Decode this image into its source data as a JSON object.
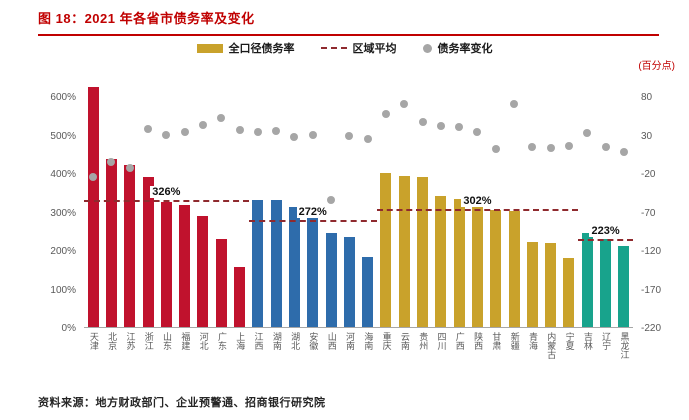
{
  "title": {
    "text": "图 18：2021 年各省市债务率及变化",
    "color": "#c00000"
  },
  "legend": [
    {
      "label": "全口径债务率",
      "swatch": "bar",
      "color": "#c9a22b"
    },
    {
      "label": "区域平均",
      "swatch": "dash",
      "color": "#8f2a2e"
    },
    {
      "label": "债务率变化",
      "swatch": "dot",
      "color": "#a6a6a6"
    }
  ],
  "right_axis_unit": "(百分点)",
  "chart_data": {
    "type": "bar",
    "title": "2021 年各省市债务率及变化",
    "categories": [
      "天津",
      "北京",
      "江苏",
      "浙江",
      "山东",
      "福建",
      "河北",
      "广东",
      "上海",
      "江西",
      "湖南",
      "湖北",
      "安徽",
      "山西",
      "河南",
      "海南",
      "重庆",
      "云南",
      "贵州",
      "四川",
      "广西",
      "陕西",
      "甘肃",
      "新疆",
      "青海",
      "内蒙古",
      "宁夏",
      "吉林",
      "辽宁",
      "黑龙江"
    ],
    "series": [
      {
        "name": "全口径债务率",
        "unit": "%",
        "axis": "left",
        "type": "bar",
        "values": [
          625,
          437,
          420,
          390,
          325,
          318,
          288,
          230,
          155,
          330,
          330,
          313,
          300,
          245,
          235,
          182,
          400,
          392,
          390,
          340,
          333,
          330,
          305,
          302,
          222,
          218,
          180,
          245,
          228,
          210
        ]
      },
      {
        "name": "债务率变化",
        "unit": "百分点",
        "axis": "right",
        "type": "scatter",
        "values": [
          -25,
          -5,
          -13,
          38,
          30,
          33,
          42,
          52,
          36,
          33,
          35,
          27,
          30,
          -55,
          28,
          24,
          57,
          70,
          46,
          41,
          40,
          33,
          12,
          70,
          14,
          13,
          15,
          32,
          14,
          8
        ]
      }
    ],
    "region_averages": [
      {
        "label": "326%",
        "value": 326,
        "start_index": 0,
        "end_index": 8
      },
      {
        "label": "272%",
        "value": 272,
        "start_index": 9,
        "end_index": 15
      },
      {
        "label": "302%",
        "value": 302,
        "start_index": 16,
        "end_index": 26
      },
      {
        "label": "223%",
        "value": 223,
        "start_index": 27,
        "end_index": 29
      }
    ],
    "bar_group_colors": [
      {
        "start_index": 0,
        "end_index": 8,
        "color": "#c0122d"
      },
      {
        "start_index": 9,
        "end_index": 15,
        "color": "#2e6cab"
      },
      {
        "start_index": 16,
        "end_index": 26,
        "color": "#c9a22b"
      },
      {
        "start_index": 27,
        "end_index": 29,
        "color": "#18a38c"
      }
    ],
    "left_axis": {
      "min": 0,
      "max": 650,
      "ticks": [
        0,
        100,
        200,
        300,
        400,
        500,
        600
      ],
      "tick_suffix": "%"
    },
    "right_axis": {
      "min": -220,
      "max": 105,
      "ticks": [
        -220,
        -170,
        -120,
        -70,
        -20,
        30,
        80
      ],
      "unit": "(百分点)"
    },
    "scatter_color": "#a6a6a6",
    "average_line_color": "#8f2a2e",
    "grid": false,
    "legend_position": "top"
  },
  "footer": {
    "source": "资料来源：地方财政部门、企业预警通、招商银行研究院"
  }
}
